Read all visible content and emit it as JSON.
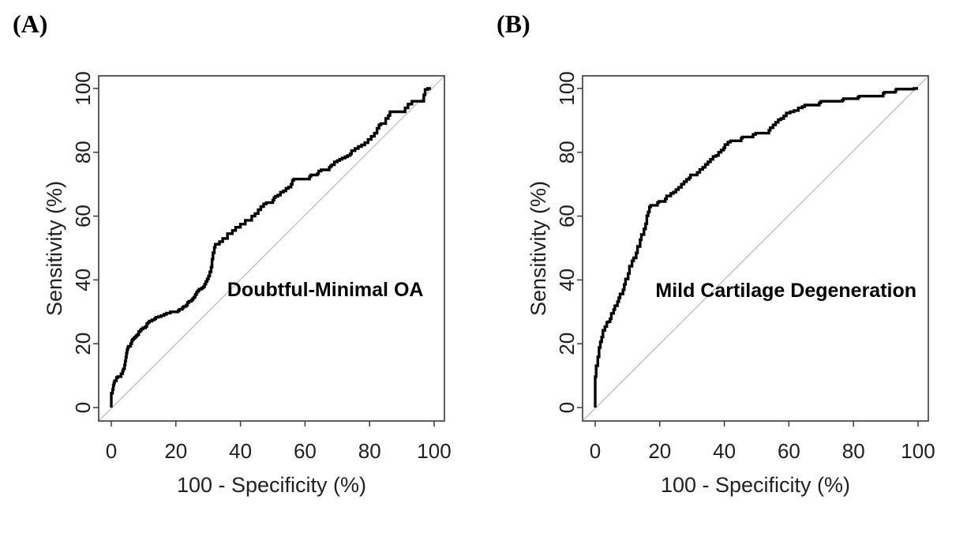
{
  "page": {
    "background": "#ffffff"
  },
  "chart_data": [
    {
      "type": "line",
      "panel_label": "(A)",
      "curve_label": "Doubtful-Minimal OA",
      "xlabel": "100 - Specificity (%)",
      "ylabel": "Sensitivity (%)",
      "xlim": [
        0,
        100
      ],
      "ylim": [
        0,
        100
      ],
      "xticks": [
        "0",
        "20",
        "40",
        "60",
        "80",
        "100"
      ],
      "yticks": [
        "0",
        "20",
        "40",
        "60",
        "80",
        "100"
      ],
      "grid": false,
      "legend": "none",
      "curve_label_pos": [
        66.3,
        37.1
      ],
      "colors": {
        "curve": "#000000",
        "diagonal": "#b8b8b8",
        "axis": "#383838",
        "text": "#1f1f1f"
      },
      "series": [
        {
          "name": "roc-curve",
          "points": [
            [
              0,
              0
            ],
            [
              0,
              3.2
            ],
            [
              0.4,
              4.5
            ],
            [
              0.6,
              5.7
            ],
            [
              0.8,
              6.9
            ],
            [
              1,
              7.7
            ],
            [
              1.6,
              8.4
            ],
            [
              2,
              9.4
            ],
            [
              3,
              9.7
            ],
            [
              3.5,
              10.6
            ],
            [
              3.7,
              11.4
            ],
            [
              4.1,
              12.1
            ],
            [
              4.3,
              13.4
            ],
            [
              4.5,
              14.6
            ],
            [
              4.7,
              15.8
            ],
            [
              4.9,
              17.1
            ],
            [
              5.1,
              18.1
            ],
            [
              5.3,
              18.8
            ],
            [
              6,
              19.2
            ],
            [
              6.3,
              20
            ],
            [
              6.5,
              20.8
            ],
            [
              6.9,
              21.3
            ],
            [
              7.3,
              21.7
            ],
            [
              7.7,
              22.1
            ],
            [
              8.1,
              22.5
            ],
            [
              8.5,
              22.9
            ],
            [
              9,
              23.8
            ],
            [
              9.3,
              24.2
            ],
            [
              9.8,
              24.6
            ],
            [
              10.6,
              25
            ],
            [
              11,
              25.4
            ],
            [
              11.4,
              26.3
            ],
            [
              11.8,
              26.7
            ],
            [
              12.6,
              27.1
            ],
            [
              13.4,
              27.5
            ],
            [
              13.8,
              27.9
            ],
            [
              14.6,
              28.3
            ],
            [
              15.4,
              28.5
            ],
            [
              16.3,
              28.8
            ],
            [
              17.1,
              29.2
            ],
            [
              18.3,
              29.6
            ],
            [
              20.7,
              30
            ],
            [
              21.1,
              30.4
            ],
            [
              22,
              30.8
            ],
            [
              22.4,
              31.3
            ],
            [
              23.2,
              31.7
            ],
            [
              23.6,
              32.1
            ],
            [
              24,
              32.9
            ],
            [
              24.8,
              33.3
            ],
            [
              25.2,
              33.7
            ],
            [
              25.6,
              34.2
            ],
            [
              26,
              34.6
            ],
            [
              26.4,
              35.4
            ],
            [
              26.8,
              36.2
            ],
            [
              27.2,
              36.6
            ],
            [
              28,
              37.1
            ],
            [
              28.5,
              37.5
            ],
            [
              28.9,
              37.9
            ],
            [
              29.3,
              38.7
            ],
            [
              29.7,
              39.5
            ],
            [
              30.1,
              40.3
            ],
            [
              30.5,
              41.2
            ],
            [
              30.9,
              42.5
            ],
            [
              31.2,
              44
            ],
            [
              31.5,
              46.5
            ],
            [
              31.9,
              48.5
            ],
            [
              32.2,
              50.2
            ],
            [
              33.5,
              51.2
            ],
            [
              34.5,
              52
            ],
            [
              36,
              53
            ],
            [
              37.5,
              54.5
            ],
            [
              38.5,
              55.5
            ],
            [
              40,
              56.5
            ],
            [
              41.5,
              57.5
            ],
            [
              43.5,
              58.7
            ],
            [
              44.5,
              60
            ],
            [
              45.5,
              60.8
            ],
            [
              46.3,
              62
            ],
            [
              47.2,
              63
            ],
            [
              48,
              63.8
            ],
            [
              50,
              64.2
            ],
            [
              50.4,
              65
            ],
            [
              50.8,
              65.8
            ],
            [
              51.6,
              66.2
            ],
            [
              52.4,
              66.6
            ],
            [
              53.3,
              67.5
            ],
            [
              54.1,
              67.9
            ],
            [
              54.9,
              68.7
            ],
            [
              55.7,
              69.1
            ],
            [
              56.1,
              70
            ],
            [
              56.5,
              71.2
            ],
            [
              61.4,
              71.6
            ],
            [
              61.8,
              72.4
            ],
            [
              63.8,
              72.9
            ],
            [
              64.2,
              73.3
            ],
            [
              65,
              74.1
            ],
            [
              67.5,
              74.5
            ],
            [
              67.9,
              75.3
            ],
            [
              68.3,
              75.7
            ],
            [
              69.1,
              76.1
            ],
            [
              70,
              77
            ],
            [
              70.7,
              77.4
            ],
            [
              71.5,
              77.8
            ],
            [
              72.4,
              78.2
            ],
            [
              73.2,
              78.6
            ],
            [
              74,
              79
            ],
            [
              74.4,
              79.5
            ],
            [
              75.5,
              80.5
            ],
            [
              76.5,
              81.2
            ],
            [
              77.5,
              81.8
            ],
            [
              78.5,
              82.3
            ],
            [
              79.5,
              83
            ],
            [
              80.5,
              84
            ],
            [
              81.5,
              85
            ],
            [
              82.3,
              86
            ],
            [
              82.9,
              87.5
            ],
            [
              83.5,
              88.6
            ],
            [
              85,
              89
            ],
            [
              85.8,
              90.6
            ],
            [
              86.3,
              91.5
            ],
            [
              87,
              92.7
            ],
            [
              91,
              92.7
            ],
            [
              91.9,
              93.9
            ],
            [
              93.1,
              95.1
            ],
            [
              93.4,
              96
            ],
            [
              96.8,
              96
            ],
            [
              97.2,
              98
            ],
            [
              98,
              99.7
            ],
            [
              99,
              100
            ]
          ]
        },
        {
          "name": "chance-diagonal",
          "points": [
            [
              -3.9,
              -4.2
            ],
            [
              103.2,
              103.9
            ]
          ]
        }
      ]
    },
    {
      "type": "line",
      "panel_label": "(B)",
      "curve_label": "Mild Cartilage Degeneration",
      "xlabel": "100 - Specificity (%)",
      "ylabel": "Sensitivity (%)",
      "xlim": [
        0,
        100
      ],
      "ylim": [
        0,
        100
      ],
      "xticks": [
        "0",
        "20",
        "40",
        "60",
        "80",
        "100"
      ],
      "yticks": [
        "0",
        "20",
        "40",
        "60",
        "80",
        "100"
      ],
      "grid": false,
      "legend": "none",
      "curve_label_pos": [
        59.1,
        36.9
      ],
      "colors": {
        "curve": "#000000",
        "diagonal": "#b8b8b8",
        "axis": "#383838",
        "text": "#1f1f1f"
      },
      "series": [
        {
          "name": "roc-curve",
          "points": [
            [
              0,
              0
            ],
            [
              0,
              5.7
            ],
            [
              0.3,
              9.7
            ],
            [
              0.8,
              13.1
            ],
            [
              1.2,
              15.9
            ],
            [
              1.6,
              18.8
            ],
            [
              2,
              20.6
            ],
            [
              2.4,
              22.1
            ],
            [
              3,
              24.2
            ],
            [
              3.6,
              25.4
            ],
            [
              4,
              26.7
            ],
            [
              4.6,
              26.9
            ],
            [
              5,
              27.8
            ],
            [
              5.7,
              29.5
            ],
            [
              6.1,
              30.7
            ],
            [
              6.9,
              31.9
            ],
            [
              7.3,
              33.2
            ],
            [
              7.7,
              34.4
            ],
            [
              8.6,
              35.6
            ],
            [
              9,
              36.9
            ],
            [
              9.4,
              38.6
            ],
            [
              10.2,
              40.3
            ],
            [
              10.6,
              42
            ],
            [
              11.4,
              44.3
            ],
            [
              11.9,
              46
            ],
            [
              12.7,
              46.9
            ],
            [
              13.1,
              48.5
            ],
            [
              13.9,
              50.5
            ],
            [
              14.3,
              52.6
            ],
            [
              15.1,
              54.2
            ],
            [
              15.6,
              56
            ],
            [
              16,
              57.6
            ],
            [
              16.4,
              60.1
            ],
            [
              16.8,
              61.3
            ],
            [
              17.2,
              62.9
            ],
            [
              19.3,
              63.4
            ],
            [
              19.7,
              64.2
            ],
            [
              21.7,
              64.6
            ],
            [
              22.1,
              65.4
            ],
            [
              23.4,
              66.3
            ],
            [
              24.2,
              67.1
            ],
            [
              25,
              67.5
            ],
            [
              25.8,
              68.3
            ],
            [
              26.7,
              69
            ],
            [
              27.5,
              70
            ],
            [
              28.3,
              70.8
            ],
            [
              29.1,
              71.5
            ],
            [
              29.5,
              72
            ],
            [
              31.6,
              72.9
            ],
            [
              32.4,
              73.7
            ],
            [
              33.3,
              74.6
            ],
            [
              34.1,
              75.3
            ],
            [
              34.9,
              76.2
            ],
            [
              35.7,
              77
            ],
            [
              36.5,
              77.8
            ],
            [
              37.4,
              78.7
            ],
            [
              38.2,
              79
            ],
            [
              39,
              80
            ],
            [
              39.8,
              80.7
            ],
            [
              40.2,
              81.4
            ],
            [
              41.1,
              82.4
            ],
            [
              41.9,
              83.2
            ],
            [
              45.2,
              83.6
            ],
            [
              45.6,
              84.4
            ],
            [
              48.9,
              84.8
            ],
            [
              49.7,
              85.6
            ],
            [
              53.8,
              86
            ],
            [
              54.2,
              86.9
            ],
            [
              55.1,
              87.7
            ],
            [
              55.9,
              88.6
            ],
            [
              56.7,
              89.4
            ],
            [
              57.5,
              90.2
            ],
            [
              58.4,
              90.6
            ],
            [
              59.2,
              91.4
            ],
            [
              60.4,
              92.3
            ],
            [
              61.6,
              92.7
            ],
            [
              62.9,
              93.1
            ],
            [
              64.1,
              93.9
            ],
            [
              64.9,
              94.3
            ],
            [
              69.4,
              94.8
            ],
            [
              69.9,
              95.5
            ],
            [
              76.5,
              96
            ],
            [
              76.9,
              96.3
            ],
            [
              81.4,
              96.8
            ],
            [
              81.8,
              97.3
            ],
            [
              89.2,
              97.6
            ],
            [
              89.6,
              98.5
            ],
            [
              93,
              98.8
            ],
            [
              93.3,
              99.5
            ],
            [
              98.7,
              99.8
            ],
            [
              99.5,
              100
            ],
            [
              100,
              100
            ]
          ]
        },
        {
          "name": "chance-diagonal",
          "points": [
            [
              -3.9,
              -4.2
            ],
            [
              103.2,
              103.9
            ]
          ]
        }
      ]
    }
  ]
}
